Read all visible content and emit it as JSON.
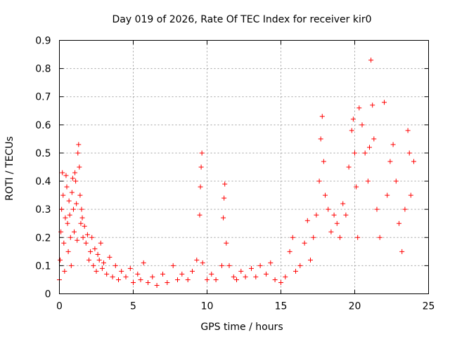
{
  "chart_data": {
    "type": "scatter",
    "title": "Day 019 of 2026, Rate Of TEC Index for receiver kir0",
    "xlabel": "GPS time / hours",
    "ylabel": "ROTI / TECUs",
    "xlim": [
      0,
      25
    ],
    "ylim": [
      0,
      0.9
    ],
    "xticks": [
      "0",
      "5",
      "10",
      "15",
      "20",
      "25"
    ],
    "yticks": [
      "0",
      "0.1",
      "0.2",
      "0.3",
      "0.4",
      "0.5",
      "0.6",
      "0.7",
      "0.8",
      "0.9"
    ],
    "grid": true,
    "marker": "+",
    "series": [
      {
        "name": "ROTI",
        "color": "#ff0000",
        "points": [
          [
            0.0,
            0.05
          ],
          [
            0.05,
            0.12
          ],
          [
            0.1,
            0.22
          ],
          [
            0.15,
            0.3
          ],
          [
            0.2,
            0.43
          ],
          [
            0.25,
            0.35
          ],
          [
            0.3,
            0.18
          ],
          [
            0.35,
            0.08
          ],
          [
            0.4,
            0.27
          ],
          [
            0.45,
            0.42
          ],
          [
            0.5,
            0.38
          ],
          [
            0.55,
            0.25
          ],
          [
            0.6,
            0.15
          ],
          [
            0.65,
            0.33
          ],
          [
            0.7,
            0.28
          ],
          [
            0.75,
            0.2
          ],
          [
            0.8,
            0.1
          ],
          [
            0.85,
            0.36
          ],
          [
            0.9,
            0.41
          ],
          [
            0.95,
            0.3
          ],
          [
            1.0,
            0.22
          ],
          [
            1.05,
            0.43
          ],
          [
            1.1,
            0.4
          ],
          [
            1.15,
            0.32
          ],
          [
            1.2,
            0.19
          ],
          [
            1.25,
            0.5
          ],
          [
            1.3,
            0.53
          ],
          [
            1.35,
            0.45
          ],
          [
            1.4,
            0.35
          ],
          [
            1.45,
            0.25
          ],
          [
            1.5,
            0.3
          ],
          [
            1.55,
            0.27
          ],
          [
            1.6,
            0.2
          ],
          [
            1.7,
            0.24
          ],
          [
            1.8,
            0.18
          ],
          [
            1.9,
            0.21
          ],
          [
            2.0,
            0.12
          ],
          [
            2.1,
            0.15
          ],
          [
            2.2,
            0.2
          ],
          [
            2.3,
            0.1
          ],
          [
            2.4,
            0.16
          ],
          [
            2.5,
            0.08
          ],
          [
            2.6,
            0.14
          ],
          [
            2.7,
            0.12
          ],
          [
            2.8,
            0.18
          ],
          [
            2.9,
            0.09
          ],
          [
            3.0,
            0.11
          ],
          [
            3.2,
            0.07
          ],
          [
            3.4,
            0.13
          ],
          [
            3.6,
            0.06
          ],
          [
            3.8,
            0.1
          ],
          [
            4.0,
            0.05
          ],
          [
            4.2,
            0.08
          ],
          [
            4.5,
            0.06
          ],
          [
            4.8,
            0.09
          ],
          [
            5.0,
            0.04
          ],
          [
            5.3,
            0.07
          ],
          [
            5.5,
            0.05
          ],
          [
            5.7,
            0.11
          ],
          [
            6.0,
            0.04
          ],
          [
            6.3,
            0.06
          ],
          [
            6.6,
            0.03
          ],
          [
            7.0,
            0.07
          ],
          [
            7.3,
            0.04
          ],
          [
            7.7,
            0.1
          ],
          [
            8.0,
            0.05
          ],
          [
            8.3,
            0.07
          ],
          [
            8.7,
            0.05
          ],
          [
            9.0,
            0.08
          ],
          [
            9.3,
            0.12
          ],
          [
            9.5,
            0.28
          ],
          [
            9.55,
            0.38
          ],
          [
            9.6,
            0.45
          ],
          [
            9.65,
            0.5
          ],
          [
            9.7,
            0.11
          ],
          [
            10.0,
            0.05
          ],
          [
            10.3,
            0.07
          ],
          [
            10.6,
            0.05
          ],
          [
            11.0,
            0.1
          ],
          [
            11.1,
            0.27
          ],
          [
            11.15,
            0.34
          ],
          [
            11.2,
            0.39
          ],
          [
            11.3,
            0.18
          ],
          [
            11.5,
            0.1
          ],
          [
            11.8,
            0.06
          ],
          [
            12.0,
            0.05
          ],
          [
            12.3,
            0.08
          ],
          [
            12.6,
            0.06
          ],
          [
            13.0,
            0.09
          ],
          [
            13.3,
            0.06
          ],
          [
            13.6,
            0.1
          ],
          [
            14.0,
            0.07
          ],
          [
            14.3,
            0.11
          ],
          [
            14.6,
            0.05
          ],
          [
            15.0,
            0.04
          ],
          [
            15.3,
            0.06
          ],
          [
            15.6,
            0.15
          ],
          [
            15.8,
            0.2
          ],
          [
            16.0,
            0.08
          ],
          [
            16.3,
            0.1
          ],
          [
            16.6,
            0.18
          ],
          [
            16.8,
            0.26
          ],
          [
            17.0,
            0.12
          ],
          [
            17.2,
            0.2
          ],
          [
            17.4,
            0.28
          ],
          [
            17.6,
            0.4
          ],
          [
            17.7,
            0.55
          ],
          [
            17.8,
            0.63
          ],
          [
            17.9,
            0.47
          ],
          [
            18.0,
            0.35
          ],
          [
            18.2,
            0.3
          ],
          [
            18.4,
            0.22
          ],
          [
            18.6,
            0.28
          ],
          [
            18.8,
            0.25
          ],
          [
            19.0,
            0.2
          ],
          [
            19.2,
            0.32
          ],
          [
            19.4,
            0.28
          ],
          [
            19.6,
            0.45
          ],
          [
            19.8,
            0.58
          ],
          [
            19.9,
            0.62
          ],
          [
            20.0,
            0.5
          ],
          [
            20.1,
            0.38
          ],
          [
            20.2,
            0.2
          ],
          [
            20.3,
            0.66
          ],
          [
            20.5,
            0.6
          ],
          [
            20.7,
            0.5
          ],
          [
            20.9,
            0.4
          ],
          [
            21.0,
            0.52
          ],
          [
            21.1,
            0.83
          ],
          [
            21.2,
            0.67
          ],
          [
            21.3,
            0.55
          ],
          [
            21.5,
            0.3
          ],
          [
            21.7,
            0.2
          ],
          [
            22.0,
            0.68
          ],
          [
            22.2,
            0.35
          ],
          [
            22.4,
            0.47
          ],
          [
            22.6,
            0.53
          ],
          [
            22.8,
            0.4
          ],
          [
            23.0,
            0.25
          ],
          [
            23.2,
            0.15
          ],
          [
            23.4,
            0.3
          ],
          [
            23.6,
            0.58
          ],
          [
            23.7,
            0.5
          ],
          [
            23.8,
            0.35
          ],
          [
            24.0,
            0.47
          ]
        ]
      }
    ]
  }
}
